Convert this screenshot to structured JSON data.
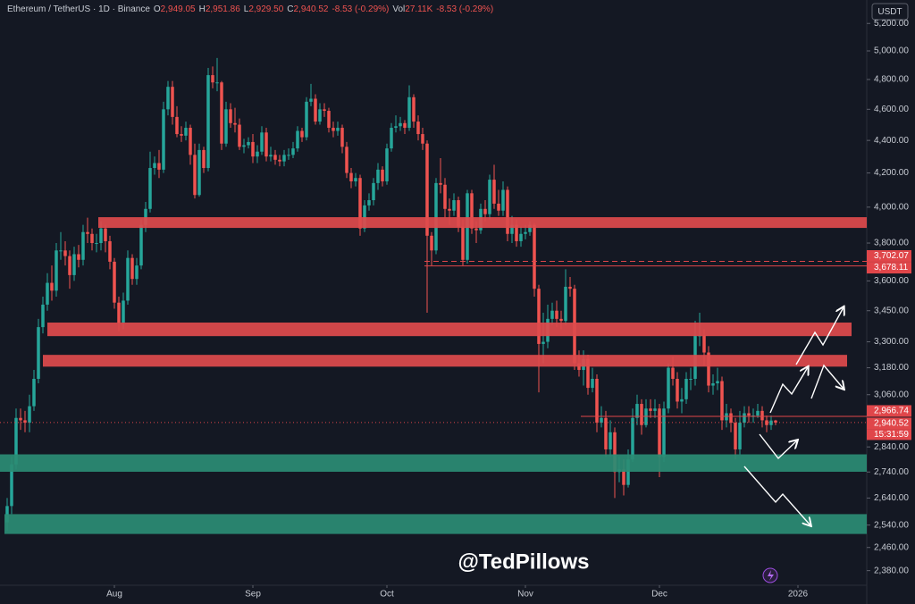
{
  "header": {
    "symbol": "Ethereum / TetherUS · 1D · Binance",
    "stats": [
      {
        "label": "O",
        "value": "2,949.05"
      },
      {
        "label": "H",
        "value": "2,951.86"
      },
      {
        "label": "L",
        "value": "2,929.50"
      },
      {
        "label": "C",
        "value": "2,940.52"
      },
      {
        "value": "-8.53 (-0.29%)"
      },
      {
        "label": "Vol",
        "value": "27.11K"
      },
      {
        "value": "-8.53 (-0.29%)"
      }
    ]
  },
  "currency": "USDT",
  "watermark": "@TedPillows",
  "chart_data": {
    "type": "candlestick",
    "log_scale": true,
    "grid": false,
    "up_color": "#26a69a",
    "down_color": "#ef5350",
    "xlim": [
      -1.6,
      191.6
    ],
    "xticks": [
      {
        "value": 24,
        "label": "Aug"
      },
      {
        "value": 55,
        "label": "Sep"
      },
      {
        "value": 85,
        "label": "Oct"
      },
      {
        "value": 116,
        "label": "Nov"
      },
      {
        "value": 146,
        "label": "Dec"
      },
      {
        "value": 177,
        "label": "2026"
      }
    ],
    "ylim": [
      2316,
      5309
    ],
    "yticks": [
      {
        "value": 2380,
        "label": "2,380.00"
      },
      {
        "value": 2460,
        "label": "2,460.00"
      },
      {
        "value": 2540,
        "label": "2,540.00"
      },
      {
        "value": 2640,
        "label": "2,640.00"
      },
      {
        "value": 2740,
        "label": "2,740.00"
      },
      {
        "value": 2840,
        "label": "2,840.00"
      },
      {
        "value": 3060,
        "label": "3,060.00"
      },
      {
        "value": 3180,
        "label": "3,180.00"
      },
      {
        "value": 3300,
        "label": "3,300.00"
      },
      {
        "value": 3450,
        "label": "3,450.00"
      },
      {
        "value": 3600,
        "label": "3,600.00"
      },
      {
        "value": 3800,
        "label": "3,800.00"
      },
      {
        "value": 4000,
        "label": "4,000.00"
      },
      {
        "value": 4200,
        "label": "4,200.00"
      },
      {
        "value": 4400,
        "label": "4,400.00"
      },
      {
        "value": 4600,
        "label": "4,600.00"
      },
      {
        "value": 4800,
        "label": "4,800.00"
      },
      {
        "value": 5000,
        "label": "5,000.00"
      },
      {
        "value": 5200,
        "label": "5,200.00"
      }
    ],
    "open": [
      2550,
      2610,
      2770,
      2960,
      2950,
      2940,
      3010,
      3130,
      3370,
      3480,
      3590,
      3550,
      3760,
      3760,
      3730,
      3630,
      3740,
      3710,
      3860,
      3850,
      3800,
      3800,
      3880,
      3810,
      3700,
      3490,
      3390,
      3500,
      3720,
      3610,
      3680,
      3900,
      3990,
      4230,
      4260,
      4220,
      4600,
      4750,
      4550,
      4440,
      4430,
      4480,
      4310,
      4070,
      4340,
      4230,
      4830,
      4780,
      4780,
      4380,
      4600,
      4510,
      4500,
      4360,
      4370,
      4390,
      4300,
      4330,
      4450,
      4300,
      4310,
      4280,
      4270,
      4310,
      4310,
      4350,
      4460,
      4420,
      4650,
      4670,
      4520,
      4600,
      4590,
      4480,
      4460,
      4480,
      4360,
      4200,
      4150,
      4170,
      3880,
      4010,
      4040,
      4140,
      4220,
      4150,
      4350,
      4480,
      4490,
      4510,
      4480,
      4680,
      4520,
      4440,
      4380,
      3840,
      3760,
      4140,
      4130,
      3990,
      3980,
      4040,
      3890,
      3710,
      4080,
      3880,
      3870,
      3990,
      3960,
      4160,
      4020,
      3980,
      4100,
      3850,
      3900,
      3810,
      3850,
      3860,
      3900,
      3560,
      3290,
      3300,
      3410,
      3450,
      3410,
      3400,
      3570,
      3560,
      3200,
      3170,
      3220,
      3090,
      3130,
      2940,
      2960,
      2830,
      2900,
      2740,
      2750,
      2690,
      2790,
      2960,
      3020,
      2930,
      3000,
      2990,
      3000,
      2800,
      3000,
      3180,
      3130,
      3030,
      3040,
      3130,
      3130,
      3330,
      3330,
      3250,
      3100,
      3110,
      3120,
      2950,
      2980,
      2940,
      2830,
      2940,
      2980,
      2970,
      2970,
      2990,
      2950,
      2930,
      2949.05
    ],
    "high": [
      2640,
      2800,
      3000,
      3000,
      2990,
      3060,
      3170,
      3410,
      3520,
      3640,
      3680,
      3800,
      3860,
      3810,
      3760,
      3780,
      3790,
      3900,
      3940,
      3880,
      3850,
      3920,
      3900,
      3840,
      3720,
      3520,
      3540,
      3760,
      3740,
      3720,
      3930,
      4030,
      4330,
      4300,
      4340,
      4650,
      4790,
      4790,
      4620,
      4490,
      4520,
      4500,
      4380,
      4380,
      4360,
      4880,
      4890,
      4950,
      4790,
      4650,
      4640,
      4610,
      4540,
      4410,
      4420,
      4440,
      4370,
      4490,
      4480,
      4360,
      4340,
      4310,
      4340,
      4350,
      4390,
      4490,
      4480,
      4680,
      4770,
      4700,
      4640,
      4640,
      4610,
      4520,
      4520,
      4500,
      4390,
      4230,
      4200,
      4190,
      4040,
      4080,
      4170,
      4260,
      4240,
      4380,
      4510,
      4560,
      4550,
      4530,
      4760,
      4700,
      4560,
      4480,
      4400,
      3860,
      4170,
      4290,
      4170,
      4050,
      4080,
      4060,
      3930,
      4100,
      4100,
      3920,
      4020,
      4040,
      4190,
      4250,
      4100,
      4150,
      4120,
      3950,
      3930,
      3890,
      3900,
      3920,
      3910,
      3580,
      3440,
      3480,
      3490,
      3500,
      3450,
      3660,
      3620,
      3580,
      3260,
      3260,
      3240,
      3180,
      3150,
      3010,
      2990,
      2950,
      2920,
      2800,
      2790,
      2830,
      3000,
      3060,
      3040,
      3040,
      3040,
      3040,
      3020,
      3030,
      3200,
      3230,
      3160,
      3090,
      3160,
      3180,
      3400,
      3440,
      3360,
      3280,
      3150,
      3180,
      3140,
      3020,
      3000,
      2960,
      2990,
      3010,
      3010,
      3000,
      3020,
      3010,
      2970,
      2970,
      2951.86
    ],
    "low": [
      2520,
      2580,
      2750,
      2910,
      2900,
      2900,
      2990,
      3110,
      3340,
      3450,
      3500,
      3520,
      3710,
      3680,
      3560,
      3600,
      3670,
      3680,
      3800,
      3760,
      3750,
      3760,
      3750,
      3660,
      3460,
      3350,
      3360,
      3480,
      3580,
      3580,
      3660,
      3860,
      3970,
      4190,
      4170,
      4200,
      4560,
      4500,
      4420,
      4390,
      4400,
      4250,
      4050,
      4060,
      4200,
      4210,
      4740,
      4720,
      4340,
      4360,
      4480,
      4450,
      4340,
      4320,
      4350,
      4260,
      4260,
      4310,
      4270,
      4270,
      4250,
      4240,
      4240,
      4280,
      4290,
      4330,
      4390,
      4400,
      4620,
      4500,
      4500,
      4550,
      4450,
      4420,
      4430,
      4320,
      4170,
      4110,
      4120,
      3840,
      3860,
      3980,
      4010,
      4100,
      4120,
      4130,
      4330,
      4450,
      4460,
      4440,
      4460,
      4480,
      4400,
      4340,
      3440,
      3680,
      3740,
      4080,
      3940,
      3900,
      3950,
      3860,
      3680,
      3690,
      3850,
      3800,
      3850,
      3920,
      3930,
      3990,
      3950,
      3950,
      3810,
      3800,
      3780,
      3780,
      3820,
      3840,
      3520,
      3070,
      3200,
      3270,
      3380,
      3370,
      3360,
      3380,
      3520,
      3170,
      3140,
      3100,
      3060,
      3070,
      2900,
      2920,
      2800,
      2800,
      2640,
      2700,
      2650,
      2680,
      2780,
      2930,
      2890,
      2920,
      2960,
      2960,
      2720,
      2780,
      2980,
      3100,
      3000,
      2980,
      3020,
      3080,
      3100,
      3280,
      3190,
      3070,
      3060,
      3080,
      2910,
      2920,
      2900,
      2790,
      2810,
      2920,
      2940,
      2940,
      2960,
      2920,
      2900,
      2910,
      2929.5
    ],
    "close": [
      2610,
      2770,
      2960,
      2950,
      2940,
      3010,
      3130,
      3370,
      3480,
      3590,
      3550,
      3760,
      3760,
      3730,
      3630,
      3740,
      3710,
      3860,
      3850,
      3800,
      3800,
      3880,
      3810,
      3700,
      3490,
      3390,
      3500,
      3720,
      3610,
      3680,
      3900,
      3990,
      4230,
      4260,
      4220,
      4600,
      4750,
      4550,
      4440,
      4430,
      4480,
      4310,
      4070,
      4340,
      4230,
      4830,
      4780,
      4780,
      4380,
      4600,
      4510,
      4500,
      4360,
      4370,
      4390,
      4300,
      4330,
      4450,
      4300,
      4310,
      4280,
      4270,
      4310,
      4310,
      4350,
      4460,
      4420,
      4650,
      4670,
      4520,
      4600,
      4590,
      4480,
      4460,
      4480,
      4360,
      4200,
      4150,
      4170,
      3880,
      4010,
      4040,
      4140,
      4220,
      4150,
      4350,
      4480,
      4490,
      4510,
      4480,
      4680,
      4520,
      4440,
      4380,
      3840,
      3760,
      4140,
      4130,
      3990,
      3980,
      4040,
      3890,
      3710,
      4080,
      3880,
      3870,
      3990,
      3960,
      4160,
      4020,
      3980,
      4100,
      3850,
      3900,
      3810,
      3850,
      3860,
      3900,
      3560,
      3290,
      3300,
      3410,
      3450,
      3410,
      3400,
      3570,
      3560,
      3200,
      3170,
      3220,
      3090,
      3130,
      2940,
      2960,
      2830,
      2900,
      2740,
      2750,
      2690,
      2790,
      2960,
      3020,
      2930,
      3000,
      2990,
      3000,
      2800,
      3000,
      3180,
      3130,
      3030,
      3040,
      3130,
      3130,
      3330,
      3330,
      3250,
      3100,
      3110,
      3120,
      2950,
      2980,
      2940,
      2830,
      2940,
      2980,
      2970,
      2970,
      2990,
      2950,
      2930,
      2949.05,
      2940.52
    ],
    "zones": [
      {
        "low": 3883,
        "high": 3943,
        "color": "#de4a4c"
      },
      {
        "low": 3327,
        "high": 3392,
        "color": "#de4a4c"
      },
      {
        "low": 3185,
        "high": 3239,
        "color": "#de4a4c"
      },
      {
        "low": 2741,
        "high": 2810,
        "color": "#2b8c74"
      },
      {
        "low": 2508,
        "high": 2580,
        "color": "#2b8c74"
      }
    ],
    "level_color": "#e0464a",
    "levels": [
      {
        "value": 3702.07,
        "label": "3,702.07",
        "style": "dashed"
      },
      {
        "value": 3678.11,
        "label": "3,678.11",
        "style": "solid"
      },
      {
        "value": 2966.74,
        "label": "2,966.74",
        "style": "solid"
      },
      {
        "value": 2940.52,
        "label": "2,940.52",
        "style": "dotted"
      }
    ],
    "countdown": "15:31:59"
  }
}
